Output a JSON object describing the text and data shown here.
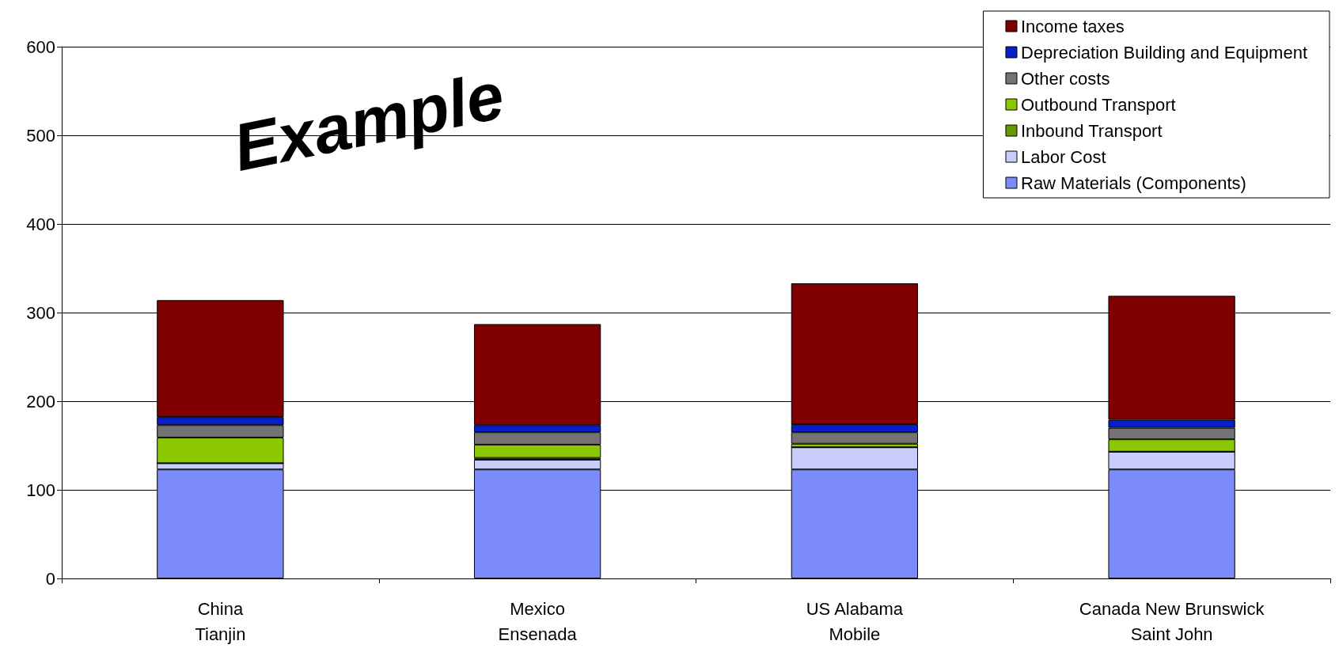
{
  "chart_data": {
    "type": "bar",
    "stacked": true,
    "categories": [
      "China\nTianjin",
      "Mexico\nEnsenada",
      "US Alabama\nMobile",
      "Canada New Brunswick\nSaint John"
    ],
    "series": [
      {
        "name": "Raw Materials (Components)",
        "color": "#7b8cfa",
        "values": [
          123,
          123,
          123,
          123
        ]
      },
      {
        "name": "Labor Cost",
        "color": "#c8cdfc",
        "values": [
          7,
          11,
          25,
          20
        ]
      },
      {
        "name": "Inbound Transport",
        "color": "#669900",
        "values": [
          0,
          2,
          0,
          0
        ]
      },
      {
        "name": "Outbound Transport",
        "color": "#8cc800",
        "values": [
          29,
          15,
          4,
          14
        ]
      },
      {
        "name": "Other costs",
        "color": "#737373",
        "values": [
          14,
          14,
          13,
          13
        ]
      },
      {
        "name": "Depreciation Building and Equipment",
        "color": "#0a1ec8",
        "values": [
          9,
          8,
          9,
          9
        ]
      },
      {
        "name": "Income taxes",
        "color": "#800000",
        "values": [
          132,
          114,
          159,
          140
        ]
      }
    ],
    "ylim": [
      0,
      600
    ],
    "yticks": [
      0,
      100,
      200,
      300,
      400,
      500,
      600
    ],
    "grid": "y",
    "legend": "top right",
    "annotations": [
      "Example"
    ]
  }
}
